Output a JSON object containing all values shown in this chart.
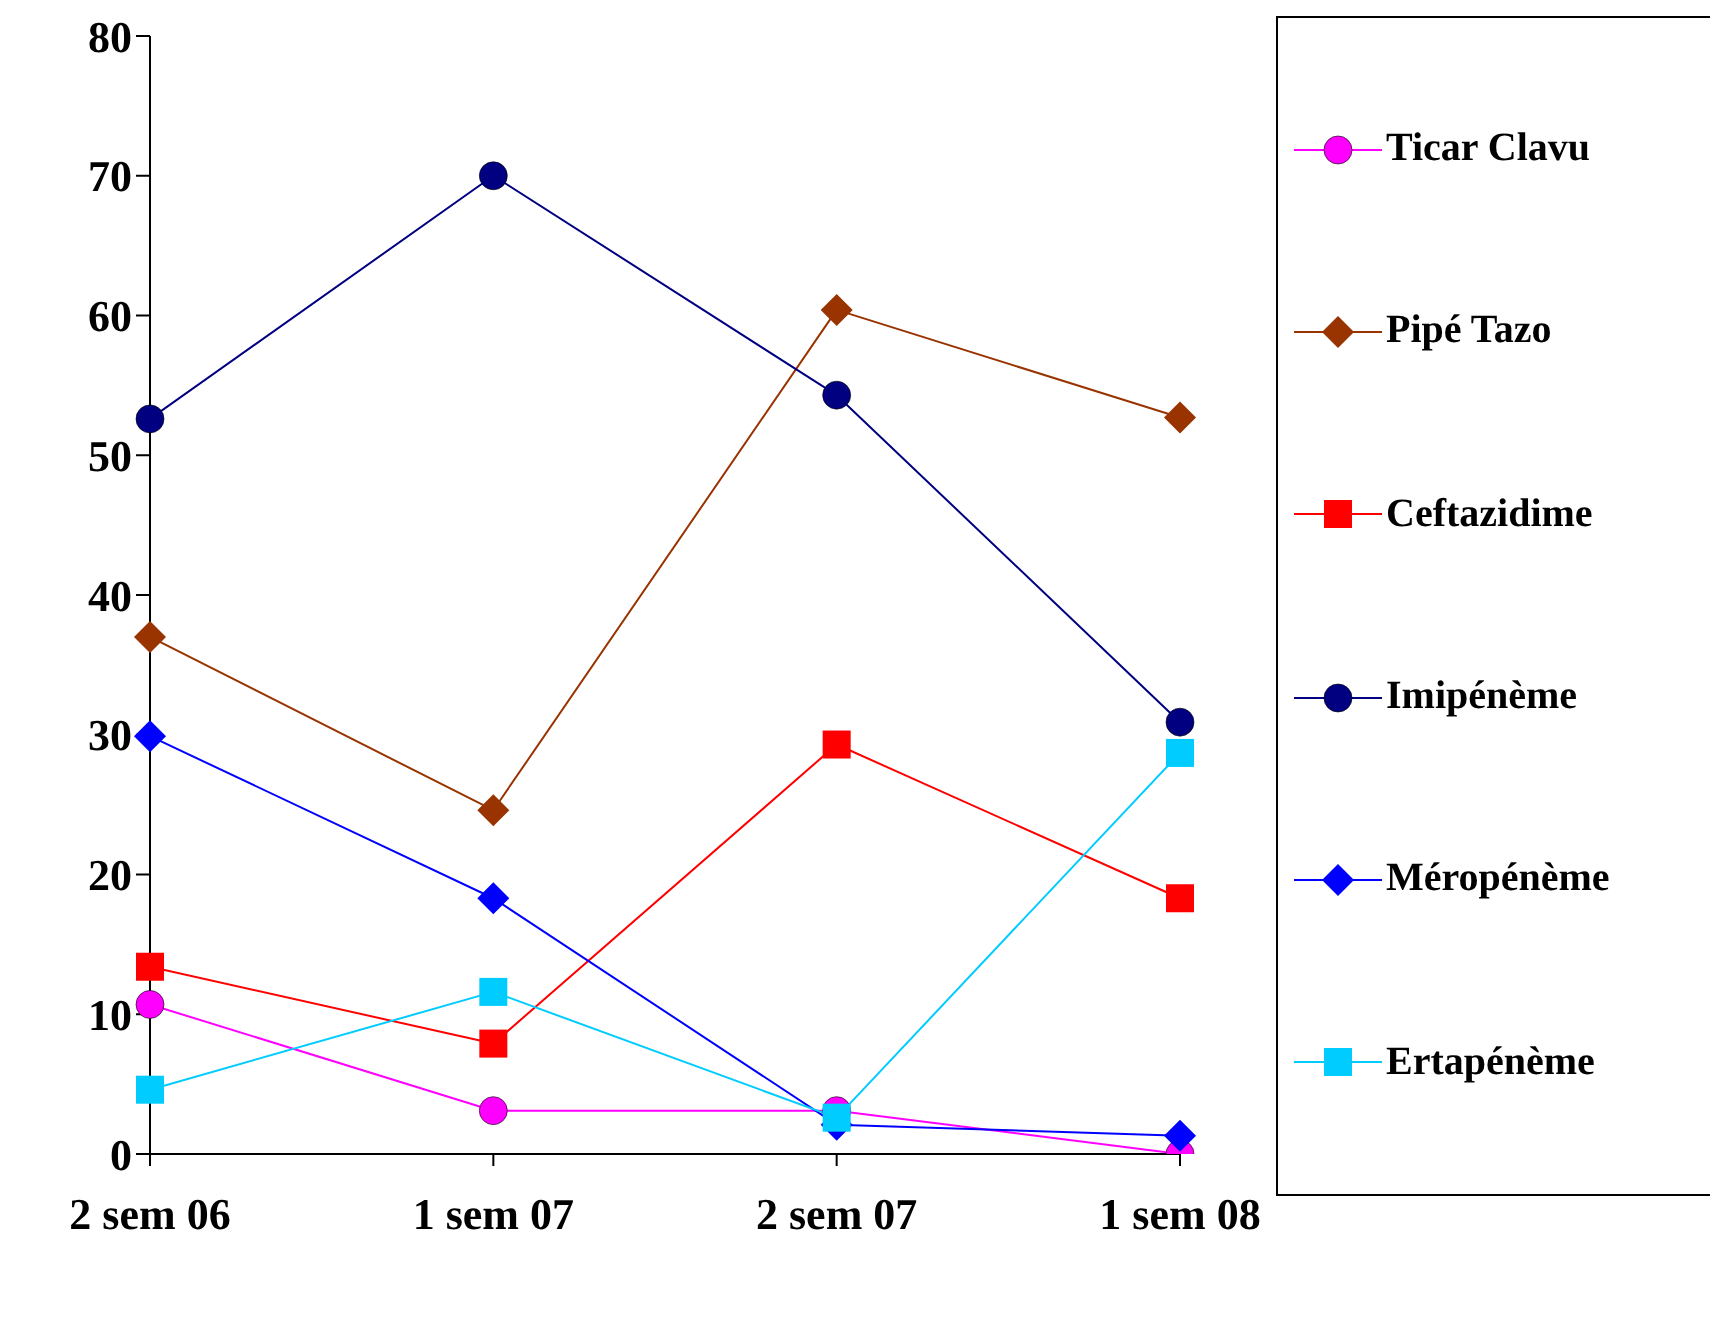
{
  "chart_data": {
    "type": "line",
    "categories": [
      "2 sem 06",
      "1 sem 07",
      "2  sem 07",
      "1 sem 08"
    ],
    "series": [
      {
        "name": "Ticar Clavu",
        "color": "#ff00ff",
        "marker": "circle",
        "values": [
          10.7,
          3.1,
          3.1,
          0
        ]
      },
      {
        "name": "Pipé Tazo",
        "color": "#993300",
        "marker": "diamond",
        "values": [
          37,
          24.6,
          60.4,
          52.7
        ]
      },
      {
        "name": "Ceftazidime",
        "color": "#ff0000",
        "marker": "square",
        "values": [
          13.4,
          7.9,
          29.3,
          18.3
        ]
      },
      {
        "name": "Imipénème",
        "color": "#000080",
        "marker": "circle",
        "values": [
          52.6,
          70,
          54.3,
          30.9
        ]
      },
      {
        "name": "Méropénème",
        "color": "#0000ff",
        "marker": "diamond",
        "values": [
          29.9,
          18.3,
          2.1,
          1.3
        ]
      },
      {
        "name": "Ertapénème",
        "color": "#00ccff",
        "marker": "square",
        "values": [
          4.6,
          11.6,
          2.6,
          28.7
        ]
      }
    ],
    "ylim": [
      0,
      80
    ],
    "yticks": [
      0,
      10,
      20,
      30,
      40,
      50,
      60,
      70,
      80
    ],
    "grid": false,
    "legend": "right"
  }
}
